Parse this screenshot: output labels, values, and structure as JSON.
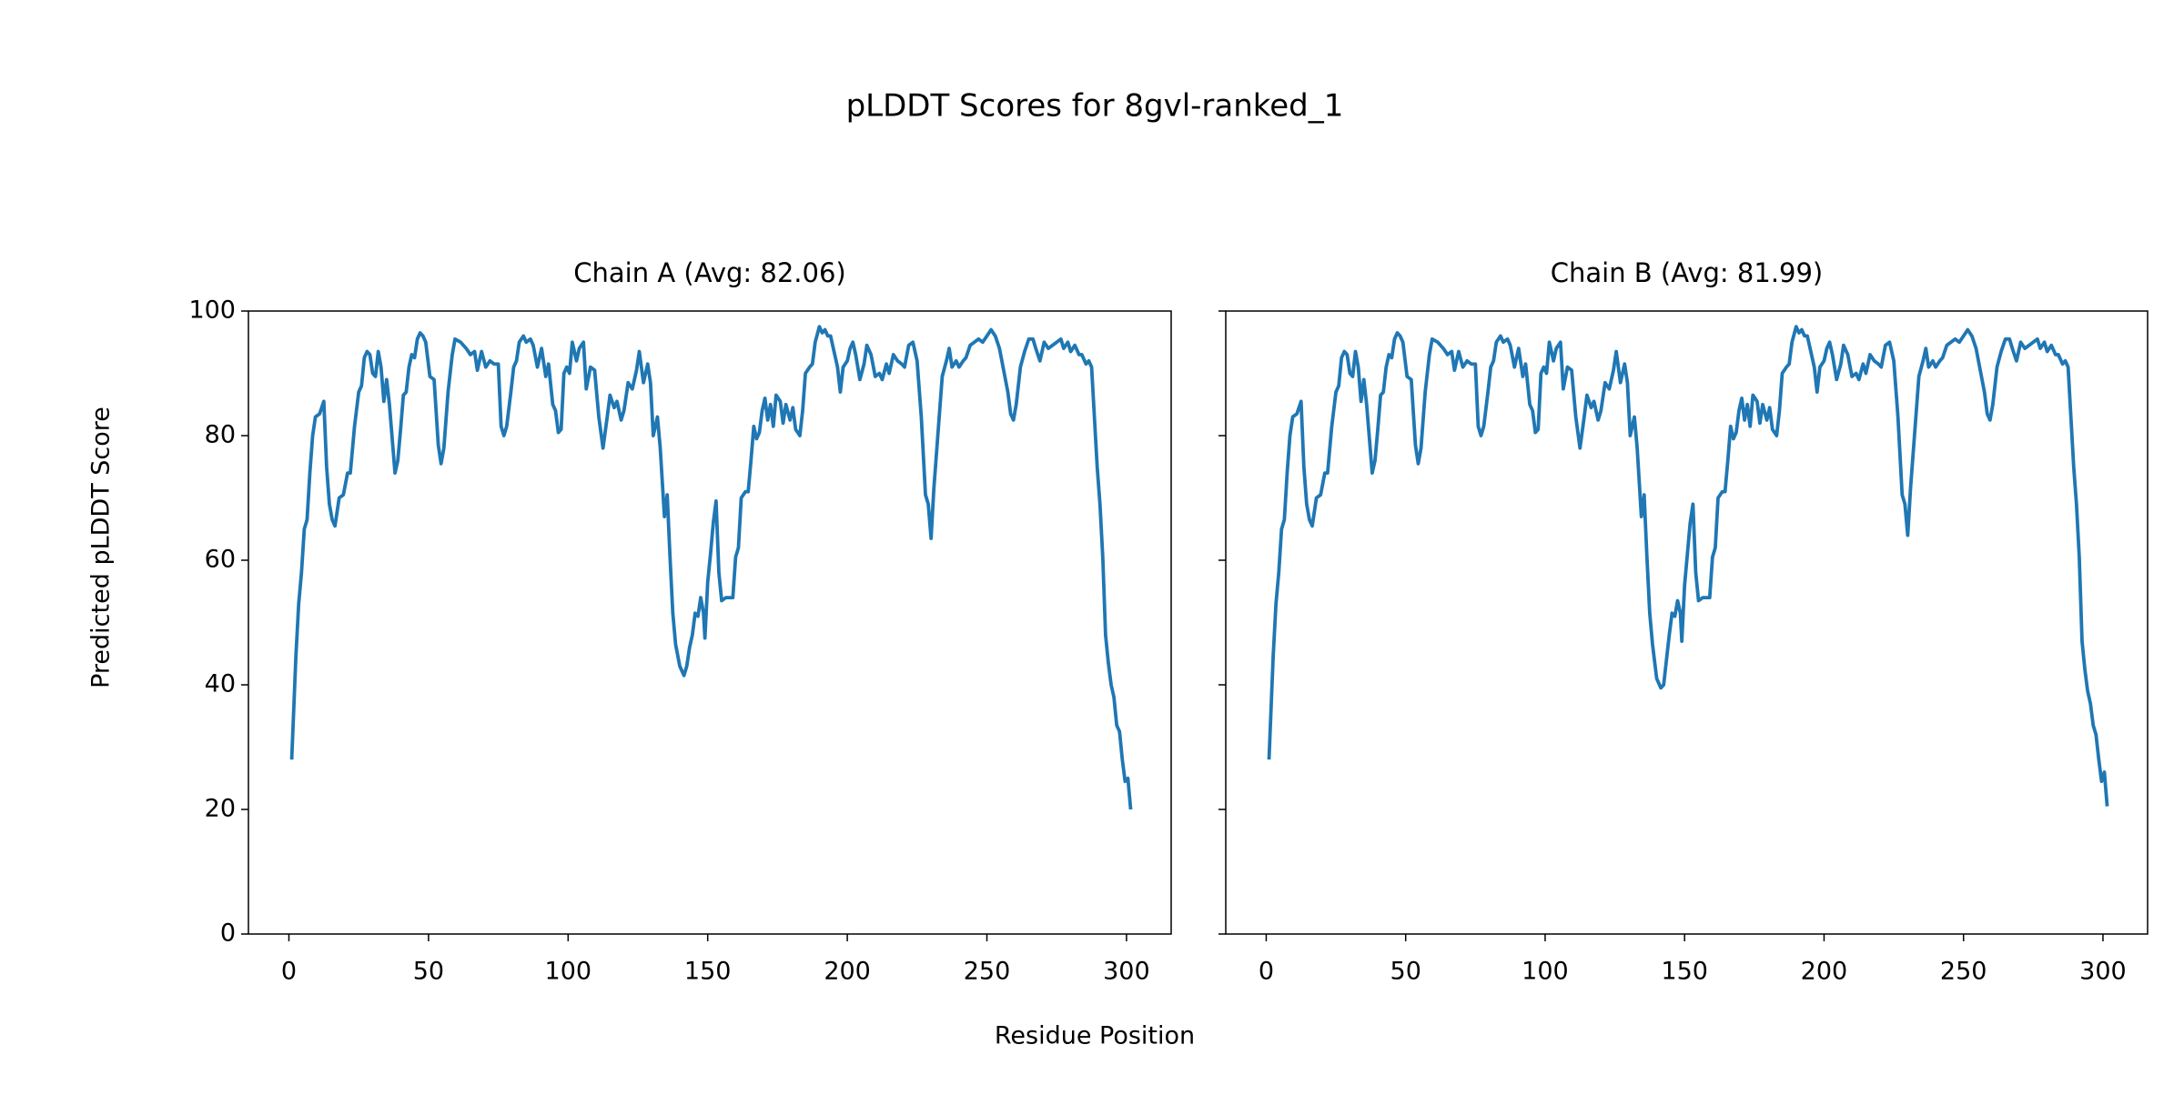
{
  "title": "pLDDT Scores for 8gvl-ranked_1",
  "xlabel": "Residue Position",
  "ylabel": "Predicted pLDDT Score",
  "chart_data": [
    {
      "type": "line",
      "title": "Chain A (Avg: 82.06)",
      "color": "#1f77b4",
      "xlim": [
        -14.5,
        316
      ],
      "ylim": [
        0,
        100
      ],
      "xticks": [
        0,
        50,
        100,
        150,
        200,
        250,
        300
      ],
      "yticks": [
        0,
        20,
        40,
        60,
        80,
        100
      ],
      "x": [
        1,
        2.5,
        3.5,
        4.5,
        5.5,
        6.5,
        7.5,
        8.5,
        9.5,
        11,
        12.5,
        13.5,
        14.5,
        15.5,
        16.5,
        18,
        19.5,
        21,
        22,
        23.5,
        25,
        26,
        27,
        28,
        29,
        30,
        31,
        32,
        33,
        34,
        35,
        36,
        38,
        39,
        40,
        41,
        42,
        43,
        44,
        45,
        46,
        47,
        48,
        49,
        50.5,
        52,
        53.5,
        54.5,
        55.5,
        57,
        58.5,
        59.5,
        61.5,
        63.5,
        65,
        66.5,
        67.5,
        69,
        70.5,
        72,
        73.5,
        75,
        76,
        77,
        78,
        79.5,
        80.5,
        81.5,
        82.5,
        84,
        85,
        86.5,
        87.5,
        89,
        90.5,
        92,
        93,
        94.5,
        95.5,
        96.5,
        97.5,
        98.5,
        99.5,
        100.5,
        101.5,
        103,
        104,
        105.5,
        106.5,
        108,
        109.5,
        111,
        112.5,
        114,
        115,
        116.5,
        117.5,
        119,
        120,
        121.5,
        123,
        124.5,
        125.5,
        127,
        128.5,
        129.5,
        130.5,
        132,
        133,
        134.5,
        135.5,
        136.5,
        137.5,
        138.5,
        140,
        141.5,
        142.5,
        143.5,
        144.5,
        145.5,
        146.5,
        147.5,
        148.5,
        149,
        150,
        151,
        152,
        153,
        154,
        155,
        156.5,
        158,
        159,
        160,
        161,
        162,
        163.5,
        164.5,
        165.5,
        166.5,
        167.5,
        168.5,
        169.5,
        170.5,
        171.5,
        172.5,
        173.5,
        174.5,
        176,
        177,
        178,
        179.5,
        180.5,
        181.5,
        183,
        184,
        185,
        186.5,
        187.5,
        188.5,
        190,
        191,
        192,
        193,
        194,
        195,
        196.5,
        197.5,
        198.5,
        200,
        201,
        202,
        203,
        204.5,
        206,
        207,
        208.5,
        210,
        211.5,
        212.5,
        214,
        215,
        216.5,
        218,
        219.5,
        220.5,
        222,
        223.5,
        225,
        226.5,
        228,
        229,
        230,
        231,
        232.5,
        234,
        235.5,
        236.5,
        237.5,
        239,
        240,
        241.5,
        242.5,
        244,
        245.5,
        247,
        248.5,
        250,
        251.5,
        253,
        254.5,
        256,
        257.5,
        258.5,
        259.5,
        260.5,
        262,
        263.5,
        265,
        266.5,
        267.5,
        269,
        270.5,
        272,
        273.5,
        275,
        276.5,
        277.5,
        279,
        280,
        281.5,
        283,
        284,
        285.5,
        286.5,
        287.5,
        288.5,
        289.5,
        290.5,
        291.5,
        292.5,
        293.5,
        294.5,
        295.5,
        296.5,
        297.5,
        298.5,
        299.5,
        300.5,
        301.5
      ],
      "values": [
        28,
        44.6,
        53,
        58,
        65,
        66.5,
        74,
        80,
        83,
        83.5,
        85.5,
        75,
        69,
        66.5,
        65.5,
        70,
        70.5,
        74,
        74,
        81.5,
        87,
        88,
        92.5,
        93.5,
        93,
        90,
        89.5,
        93.5,
        91,
        85.5,
        89,
        85,
        74,
        76,
        81,
        86.5,
        87,
        91,
        93,
        92.5,
        95.5,
        96.5,
        96,
        95,
        89.5,
        89,
        78.5,
        75.5,
        78,
        87,
        93,
        95.5,
        95,
        94,
        93,
        93.5,
        90.5,
        93.5,
        91,
        92,
        91.5,
        91.5,
        81.5,
        80,
        81.5,
        87,
        91,
        92,
        95,
        96,
        95,
        95.5,
        94.5,
        91,
        94,
        89.5,
        91.5,
        85,
        84,
        80.5,
        81,
        90,
        91,
        90,
        95,
        92,
        94,
        95,
        87.5,
        91,
        90.5,
        83,
        78,
        83,
        86.5,
        84.5,
        85.5,
        82.5,
        84,
        88.5,
        87.5,
        90.5,
        93.5,
        88.5,
        91.5,
        88.5,
        80,
        83,
        78,
        67,
        70.5,
        60.5,
        51.5,
        46.5,
        43,
        41.5,
        43,
        46,
        48,
        51.5,
        51,
        54,
        51.5,
        47.5,
        56.5,
        61,
        66,
        69.5,
        58,
        53.5,
        54,
        54,
        54,
        60.5,
        62,
        70,
        71,
        71,
        76,
        81.5,
        79.5,
        80.5,
        84,
        86,
        82.5,
        85,
        81.5,
        86.5,
        85.5,
        82,
        85,
        82.5,
        84.5,
        81,
        80,
        84,
        90,
        91,
        91.5,
        95,
        97.5,
        96.5,
        97,
        96,
        96,
        94,
        91,
        87,
        91,
        92,
        94,
        95,
        93,
        89,
        91.5,
        94.5,
        93,
        89.5,
        90,
        89,
        91.5,
        90,
        93,
        92,
        91.5,
        91,
        94.5,
        95,
        92,
        83,
        70.5,
        69,
        63.5,
        71.5,
        80.5,
        89.5,
        92,
        94,
        91,
        92,
        91,
        92,
        92.5,
        94.5,
        95,
        95.5,
        95,
        96,
        97,
        96,
        94,
        90.5,
        87,
        83.5,
        82.5,
        85,
        91,
        93.5,
        95.5,
        95.5,
        94,
        92,
        95,
        94,
        94.5,
        95,
        95.5,
        94,
        95,
        93.5,
        94.5,
        93,
        93,
        91.5,
        92,
        91,
        83,
        75,
        69,
        60.5,
        48,
        43.5,
        40,
        38,
        33.5,
        32.5,
        28,
        24.5,
        25,
        20
      ]
    },
    {
      "type": "line",
      "title": "Chain B (Avg: 81.99)",
      "color": "#1f77b4",
      "xlim": [
        -14.5,
        316
      ],
      "ylim": [
        0,
        100
      ],
      "xticks": [
        0,
        50,
        100,
        150,
        200,
        250,
        300
      ],
      "yticks": [
        0,
        20,
        40,
        60,
        80,
        100
      ],
      "x": [
        1,
        2.5,
        3.5,
        4.5,
        5.5,
        6.5,
        7.5,
        8.5,
        9.5,
        11,
        12.5,
        13.5,
        14.5,
        15.5,
        16.5,
        18,
        19.5,
        21,
        22,
        23.5,
        25,
        26,
        27,
        28,
        29,
        30,
        31,
        32,
        33,
        34,
        35,
        36,
        38,
        39,
        40,
        41,
        42,
        43,
        44,
        45,
        46,
        47,
        48,
        49,
        50.5,
        52,
        53.5,
        54.5,
        55.5,
        57,
        58.5,
        59.5,
        61.5,
        63.5,
        65,
        66.5,
        67.5,
        69,
        70.5,
        72,
        73.5,
        75,
        76,
        77,
        78,
        79.5,
        80.5,
        81.5,
        82.5,
        84,
        85,
        86.5,
        87.5,
        89,
        90.5,
        92,
        93,
        94.5,
        95.5,
        96.5,
        97.5,
        98.5,
        99.5,
        100.5,
        101.5,
        103,
        104,
        105.5,
        106.5,
        108,
        109.5,
        111,
        112.5,
        114,
        115,
        116.5,
        117.5,
        119,
        120,
        121.5,
        123,
        124.5,
        125.5,
        127,
        128.5,
        129.5,
        130.5,
        132,
        133,
        134.5,
        135.5,
        136.5,
        137.5,
        138.5,
        140,
        141.5,
        142.5,
        143.5,
        144.5,
        145.5,
        146.5,
        147.5,
        148.5,
        149,
        150,
        151,
        152,
        153,
        154,
        155,
        156.5,
        158,
        159,
        160,
        161,
        162,
        163.5,
        164.5,
        165.5,
        166.5,
        167.5,
        168.5,
        169.5,
        170.5,
        171.5,
        172.5,
        173.5,
        174.5,
        176,
        177,
        178,
        179.5,
        180.5,
        181.5,
        183,
        184,
        185,
        186.5,
        187.5,
        188.5,
        190,
        191,
        192,
        193,
        194,
        195,
        196.5,
        197.5,
        198.5,
        200,
        201,
        202,
        203,
        204.5,
        206,
        207,
        208.5,
        210,
        211.5,
        212.5,
        214,
        215,
        216.5,
        218,
        219.5,
        220.5,
        222,
        223.5,
        225,
        226.5,
        228,
        229,
        230,
        231,
        232.5,
        234,
        235.5,
        236.5,
        237.5,
        239,
        240,
        241.5,
        242.5,
        244,
        245.5,
        247,
        248.5,
        250,
        251.5,
        253,
        254.5,
        256,
        257.5,
        258.5,
        259.5,
        260.5,
        262,
        263.5,
        265,
        266.5,
        267.5,
        269,
        270.5,
        272,
        273.5,
        275,
        276.5,
        277.5,
        279,
        280,
        281.5,
        283,
        284,
        285.5,
        286.5,
        287.5,
        288.5,
        289.5,
        290.5,
        291.5,
        292.5,
        293.5,
        294.5,
        295.5,
        296.5,
        297.5,
        298.5,
        299.5,
        300.5,
        301.5
      ],
      "values": [
        28,
        44.6,
        53,
        58,
        65,
        66.5,
        74,
        80,
        83,
        83.5,
        85.5,
        75,
        69,
        66.5,
        65.5,
        70,
        70.5,
        74,
        74,
        81.5,
        87,
        88,
        92.5,
        93.5,
        93,
        90,
        89.5,
        93.5,
        91,
        85.5,
        89,
        85,
        74,
        76,
        81,
        86.5,
        87,
        91,
        93,
        92.5,
        95.5,
        96.5,
        96,
        95,
        89.5,
        89,
        78.5,
        75.5,
        78,
        87,
        93,
        95.5,
        95,
        94,
        93,
        93.5,
        90.5,
        93.5,
        91,
        92,
        91.5,
        91.5,
        81.5,
        80,
        81.5,
        87,
        91,
        92,
        95,
        96,
        95,
        95.5,
        94.5,
        91,
        94,
        89.5,
        91.5,
        85,
        84,
        80.5,
        81,
        90,
        91,
        90,
        95,
        92,
        94,
        95,
        87.5,
        91,
        90.5,
        83,
        78,
        83,
        86.5,
        84.5,
        85.5,
        82.5,
        84,
        88.5,
        87.5,
        90.5,
        93.5,
        88.5,
        91.5,
        88.5,
        80,
        83,
        78,
        67,
        70.5,
        60.5,
        51.5,
        46.5,
        41,
        39.5,
        40,
        44,
        48,
        51.5,
        51,
        53.5,
        51.5,
        47,
        56,
        61,
        66,
        69,
        58,
        53.5,
        54,
        54,
        54,
        60.5,
        62,
        70,
        71,
        71,
        76,
        81.5,
        79.5,
        80.5,
        84,
        86,
        82.5,
        85,
        81.5,
        86.5,
        85.5,
        82,
        85,
        82.5,
        84.5,
        81,
        80,
        84,
        90,
        91,
        91.5,
        95,
        97.5,
        96.5,
        97,
        96,
        96,
        94,
        91,
        87,
        91,
        92,
        94,
        95,
        93,
        89,
        91.5,
        94.5,
        93,
        89.5,
        90,
        89,
        91.5,
        90,
        93,
        92,
        91.5,
        91,
        94.5,
        95,
        92,
        83,
        70.5,
        69,
        64,
        71.5,
        80.5,
        89.5,
        92,
        94,
        91,
        92,
        91,
        92,
        92.5,
        94.5,
        95,
        95.5,
        95,
        96,
        97,
        96,
        94,
        90.5,
        87,
        83.5,
        82.5,
        85,
        91,
        93.5,
        95.5,
        95.5,
        94,
        92,
        95,
        94,
        94.5,
        95,
        95.5,
        94,
        95,
        93.5,
        94.5,
        93,
        93,
        91.5,
        92,
        91,
        83,
        75,
        69,
        60.5,
        47,
        42.5,
        39,
        37,
        33.5,
        32,
        28,
        24.5,
        26,
        20.5
      ]
    }
  ]
}
